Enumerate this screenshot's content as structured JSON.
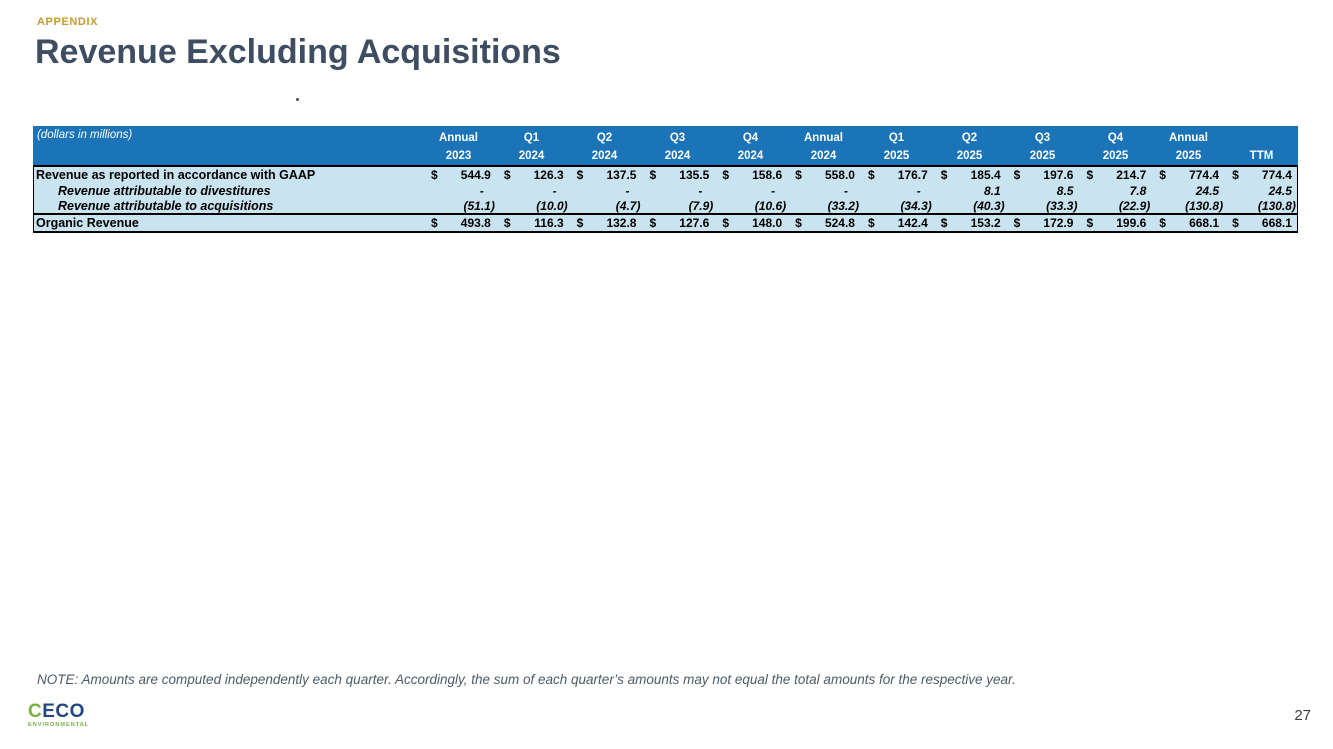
{
  "slide": {
    "eyebrow": "APPENDIX",
    "title": "Revenue Excluding Acquisitions",
    "note": "NOTE: Amounts are computed independently each quarter. Accordingly, the sum of each quarter’s amounts may not equal the total amounts for the respective year.",
    "page_number": "27"
  },
  "logo": {
    "first_letter": "C",
    "rest": "ECO",
    "subtitle": "ENVIRONMENTAL"
  },
  "table": {
    "units_label": "(dollars in millions)",
    "currency_symbol": "$",
    "columns": [
      {
        "period": "Annual",
        "year": "2023"
      },
      {
        "period": "Q1",
        "year": "2024"
      },
      {
        "period": "Q2",
        "year": "2024"
      },
      {
        "period": "Q3",
        "year": "2024"
      },
      {
        "period": "Q4",
        "year": "2024"
      },
      {
        "period": "Annual",
        "year": "2024"
      },
      {
        "period": "Q1",
        "year": "2025"
      },
      {
        "period": "Q2",
        "year": "2025"
      },
      {
        "period": "Q3",
        "year": "2025"
      },
      {
        "period": "Q4",
        "year": "2025"
      },
      {
        "period": "Annual",
        "year": "2025"
      },
      {
        "period": "",
        "year": "TTM"
      }
    ],
    "rows": [
      {
        "label": "Revenue as reported in accordance with GAAP",
        "indent": false,
        "dollar": true,
        "total": false,
        "values": [
          "544.9",
          "126.3",
          "137.5",
          "135.5",
          "158.6",
          "558.0",
          "176.7",
          "185.4",
          "197.6",
          "214.7",
          "774.4",
          "774.4"
        ]
      },
      {
        "label": "Revenue attributable to divestitures",
        "indent": true,
        "dollar": false,
        "total": false,
        "values": [
          "-",
          "-",
          "-",
          "-",
          "-",
          "-",
          "-",
          "8.1",
          "8.5",
          "7.8",
          "24.5",
          "24.5"
        ]
      },
      {
        "label": "Revenue attributable to acquisitions",
        "indent": true,
        "dollar": false,
        "total": false,
        "values": [
          "(51.1)",
          "(10.0)",
          "(4.7)",
          "(7.9)",
          "(10.6)",
          "(33.2)",
          "(34.3)",
          "(40.3)",
          "(33.3)",
          "(22.9)",
          "(130.8)",
          "(130.8)"
        ]
      },
      {
        "label": "Organic Revenue",
        "indent": false,
        "dollar": true,
        "total": true,
        "values": [
          "493.8",
          "116.3",
          "132.8",
          "127.6",
          "148.0",
          "524.8",
          "142.4",
          "153.2",
          "172.9",
          "199.6",
          "668.1",
          "668.1"
        ]
      }
    ]
  },
  "colors": {
    "header_bg": "#1B73B8",
    "body_bg": "#C9E3EF",
    "eyebrow": "#C9992F",
    "title": "#3F4D63",
    "note": "#4E5A66",
    "logo_green": "#76B043",
    "logo_navy": "#26477E",
    "page_number": "#3C3C3C"
  }
}
